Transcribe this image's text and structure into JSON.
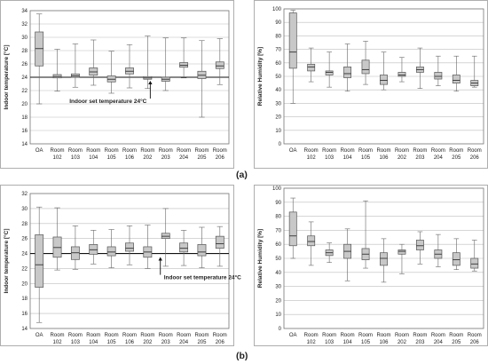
{
  "captions": {
    "a": "(a)",
    "b": "(b)"
  },
  "chart_data": [
    {
      "id": "a-temperature",
      "type": "box",
      "ylabel": "Indoor temperature [°C]",
      "ylim": [
        14,
        34
      ],
      "yticks": [
        14,
        16,
        18,
        20,
        22,
        24,
        26,
        28,
        30,
        32,
        34
      ],
      "grid": true,
      "categories": [
        "OA",
        "Room 102",
        "Room 103",
        "Room 104",
        "Room 105",
        "Room 106",
        "Room 202",
        "Room 203",
        "Room 204",
        "Room 205",
        "Room 206"
      ],
      "series": [
        {
          "min": [
            20.0,
            21.9,
            22.5,
            22.8,
            21.6,
            22.4,
            22.3,
            22.0,
            23.9,
            18.0,
            22.9
          ],
          "q1": [
            25.7,
            23.9,
            24.0,
            24.3,
            23.3,
            24.5,
            23.7,
            23.4,
            25.5,
            23.8,
            25.3
          ],
          "median": [
            28.3,
            24.1,
            24.2,
            24.8,
            23.7,
            24.9,
            23.9,
            23.7,
            25.8,
            24.3,
            25.7
          ],
          "q3": [
            30.8,
            24.4,
            24.5,
            25.4,
            24.2,
            25.4,
            24.1,
            24.0,
            26.2,
            24.9,
            26.3
          ],
          "max": [
            33.5,
            28.2,
            29.0,
            29.6,
            27.9,
            28.9,
            30.2,
            29.9,
            29.9,
            29.5,
            29.8
          ]
        }
      ],
      "reference_line": {
        "y": 24,
        "label": "Indoor set temperature 24°C",
        "arrow_at": "Room 202"
      }
    },
    {
      "id": "a-humidity",
      "type": "box",
      "ylabel": "Relative Humidity [%]",
      "ylim": [
        0,
        100
      ],
      "yticks": [
        0,
        10,
        20,
        30,
        40,
        50,
        60,
        70,
        80,
        90,
        100
      ],
      "grid": true,
      "categories": [
        "OA",
        "Room 102",
        "Room 103",
        "Room 104",
        "Room 105",
        "Room 106",
        "Room 202",
        "Room 203",
        "Room 204",
        "Room 205",
        "Room 206"
      ],
      "series": [
        {
          "min": [
            30,
            46,
            42,
            39,
            44,
            40,
            46,
            41,
            43,
            39,
            42
          ],
          "q1": [
            56,
            54,
            51,
            49,
            52,
            44,
            50,
            53,
            48,
            45,
            43
          ],
          "median": [
            68,
            57,
            53,
            52,
            55,
            47,
            51,
            55,
            50,
            47,
            45
          ],
          "q3": [
            97,
            59,
            54,
            57,
            62,
            51,
            53,
            57,
            53,
            51,
            47
          ],
          "max": [
            99,
            71,
            68,
            74,
            76,
            68,
            64,
            71,
            65,
            65,
            65
          ]
        }
      ]
    },
    {
      "id": "b-temperature",
      "type": "box",
      "ylabel": "Indoor temperature [°C]",
      "ylim": [
        14,
        32
      ],
      "yticks": [
        14,
        16,
        18,
        20,
        22,
        24,
        26,
        28,
        30,
        32
      ],
      "grid": true,
      "categories": [
        "OA",
        "Room 102",
        "Room 103",
        "Room 104",
        "Room 105",
        "Room 106",
        "Room 202",
        "Room 203",
        "Room 204",
        "Room 205",
        "Room 206"
      ],
      "series": [
        {
          "min": [
            14.8,
            21.8,
            21.9,
            22.6,
            22.1,
            22.5,
            22.0,
            22.3,
            22.4,
            22.1,
            22.3
          ],
          "q1": [
            19.5,
            23.5,
            23.2,
            23.9,
            23.7,
            24.3,
            23.5,
            26.0,
            24.2,
            23.7,
            24.7
          ],
          "median": [
            22.5,
            24.8,
            24.1,
            24.5,
            24.2,
            24.7,
            24.2,
            26.3,
            24.7,
            24.2,
            25.3
          ],
          "q3": [
            26.5,
            26.2,
            24.9,
            25.2,
            24.9,
            25.4,
            24.9,
            26.7,
            25.4,
            25.2,
            26.3
          ],
          "max": [
            30.2,
            30.1,
            27.7,
            27.1,
            27.2,
            27.7,
            27.8,
            30.0,
            27.1,
            27.5,
            27.6
          ]
        }
      ],
      "reference_line": {
        "y": 24,
        "label": "Indoor set temperature 24°C",
        "arrow_at": "Room 203"
      }
    },
    {
      "id": "b-humidity",
      "type": "box",
      "ylabel": "Relative Humidity [%]",
      "ylim": [
        0,
        100
      ],
      "yticks": [
        0,
        10,
        20,
        30,
        40,
        50,
        60,
        70,
        80,
        90,
        100
      ],
      "grid": true,
      "categories": [
        "OA",
        "Room 102",
        "Room 103",
        "Room 104",
        "Room 105",
        "Room 106",
        "Room 202",
        "Room 203",
        "Room 204",
        "Room 205",
        "Room 206"
      ],
      "series": [
        {
          "min": [
            50,
            45,
            47,
            34,
            43,
            33,
            39,
            46,
            44,
            42,
            41
          ],
          "q1": [
            59,
            59,
            52,
            50,
            49,
            45,
            53,
            56,
            50,
            45,
            43
          ],
          "median": [
            66,
            62,
            54,
            55,
            53,
            50,
            55,
            59,
            53,
            49,
            46
          ],
          "q3": [
            83,
            66,
            56,
            60,
            57,
            54,
            56,
            63,
            56,
            54,
            50
          ],
          "max": [
            93,
            76,
            61,
            71,
            91,
            64,
            60,
            69,
            67,
            64,
            63
          ]
        }
      ]
    }
  ]
}
